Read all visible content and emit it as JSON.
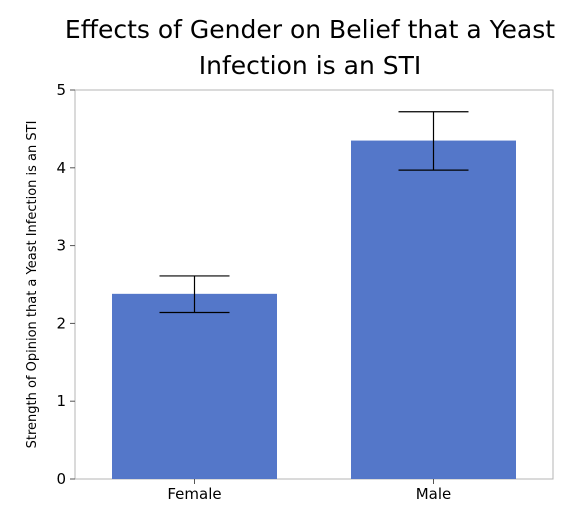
{
  "chart_data": {
    "type": "bar",
    "title": "Effects of Gender on Belief that a Yeast Infection is an STI",
    "title_lines": [
      "Effects of Gender on Belief that a Yeast",
      "Infection is an STI"
    ],
    "ylabel": "Strength of Opinion that a Yeast Infection is an STI",
    "xlabel": "",
    "categories": [
      "Female",
      "Male"
    ],
    "values": [
      2.38,
      4.35
    ],
    "error_low": [
      2.14,
      3.97
    ],
    "error_high": [
      2.61,
      4.72
    ],
    "ylim": [
      0,
      5
    ],
    "yticks": [
      0,
      1,
      2,
      3,
      4,
      5
    ],
    "bar_color": "#5477C9",
    "grid": false
  }
}
